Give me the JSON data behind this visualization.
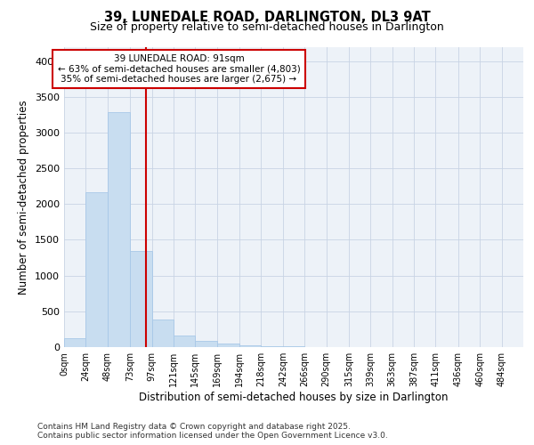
{
  "title1": "39, LUNEDALE ROAD, DARLINGTON, DL3 9AT",
  "title2": "Size of property relative to semi-detached houses in Darlington",
  "xlabel": "Distribution of semi-detached houses by size in Darlington",
  "ylabel": "Number of semi-detached properties",
  "annotation_title": "39 LUNEDALE ROAD: 91sqm",
  "annotation_line1": "← 63% of semi-detached houses are smaller (4,803)",
  "annotation_line2": "35% of semi-detached houses are larger (2,675) →",
  "footer1": "Contains HM Land Registry data © Crown copyright and database right 2025.",
  "footer2": "Contains public sector information licensed under the Open Government Licence v3.0.",
  "bar_left_edges": [
    0,
    24,
    48,
    73,
    97,
    121,
    145,
    169,
    194,
    218,
    242,
    266,
    290,
    315,
    339,
    363,
    387,
    411,
    436,
    460
  ],
  "bar_widths": [
    24,
    24,
    25,
    24,
    24,
    24,
    24,
    25,
    24,
    24,
    24,
    24,
    25,
    24,
    24,
    24,
    24,
    25,
    24,
    24
  ],
  "bar_heights": [
    130,
    2170,
    3280,
    1340,
    390,
    165,
    90,
    55,
    30,
    18,
    10,
    5,
    3,
    2,
    1,
    0,
    0,
    0,
    0,
    0
  ],
  "tick_labels": [
    "0sqm",
    "24sqm",
    "48sqm",
    "73sqm",
    "97sqm",
    "121sqm",
    "145sqm",
    "169sqm",
    "194sqm",
    "218sqm",
    "242sqm",
    "266sqm",
    "290sqm",
    "315sqm",
    "339sqm",
    "363sqm",
    "387sqm",
    "411sqm",
    "436sqm",
    "460sqm",
    "484sqm"
  ],
  "tick_positions": [
    0,
    24,
    48,
    73,
    97,
    121,
    145,
    169,
    194,
    218,
    242,
    266,
    290,
    315,
    339,
    363,
    387,
    411,
    436,
    460,
    484
  ],
  "ylim": [
    0,
    4200
  ],
  "xlim": [
    0,
    508
  ],
  "bar_color": "#c8ddf0",
  "bar_edge_color": "#a8c8e8",
  "vline_color": "#cc0000",
  "vline_x": 91,
  "box_color": "#cc0000",
  "grid_color": "#c8d4e4",
  "bg_color": "#edf2f8",
  "title1_fontsize": 10.5,
  "title2_fontsize": 9,
  "axis_label_fontsize": 8.5,
  "tick_fontsize": 7,
  "footer_fontsize": 6.5,
  "annotation_fontsize": 7.5
}
